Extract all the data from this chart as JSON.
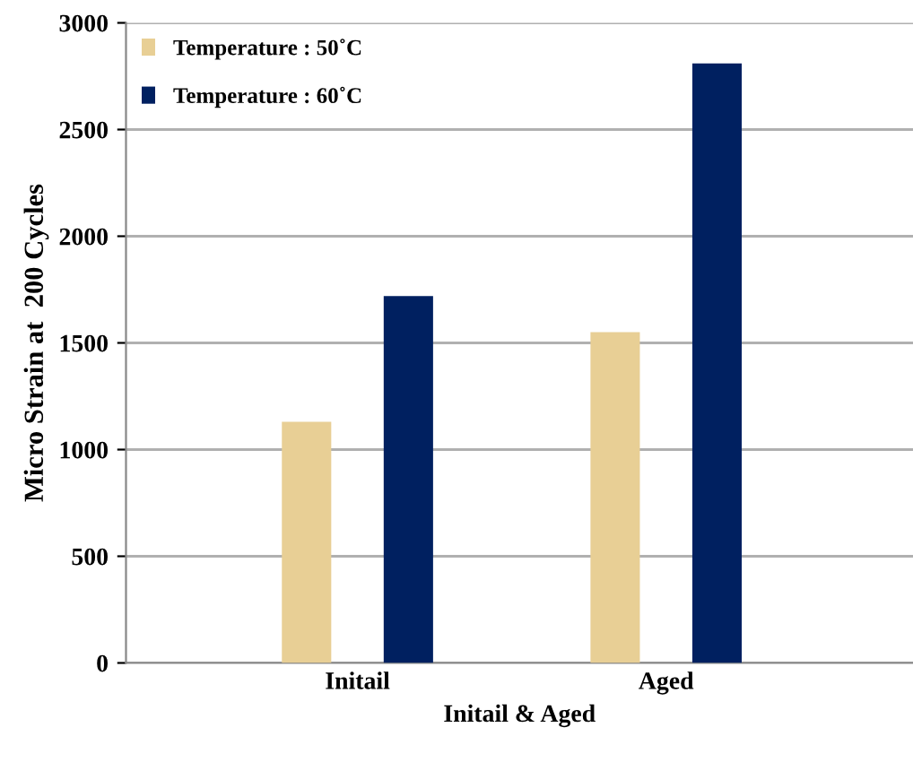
{
  "chart_data": {
    "type": "bar",
    "categories": [
      "Initail",
      "Aged"
    ],
    "series": [
      {
        "name": "Temperature : 50˚C",
        "color": "#e8cf95",
        "values": [
          1130,
          1550
        ]
      },
      {
        "name": "Temperature : 60˚C",
        "color": "#002060",
        "values": [
          1720,
          2810
        ]
      }
    ],
    "xlabel": "Initail & Aged",
    "ylabel": "Micro Strain at  200 Cycles",
    "ylim": [
      0,
      3000
    ],
    "yticks": [
      0,
      500,
      1000,
      1500,
      2000,
      2500,
      3000
    ],
    "grid": "y",
    "legend": "top left"
  }
}
